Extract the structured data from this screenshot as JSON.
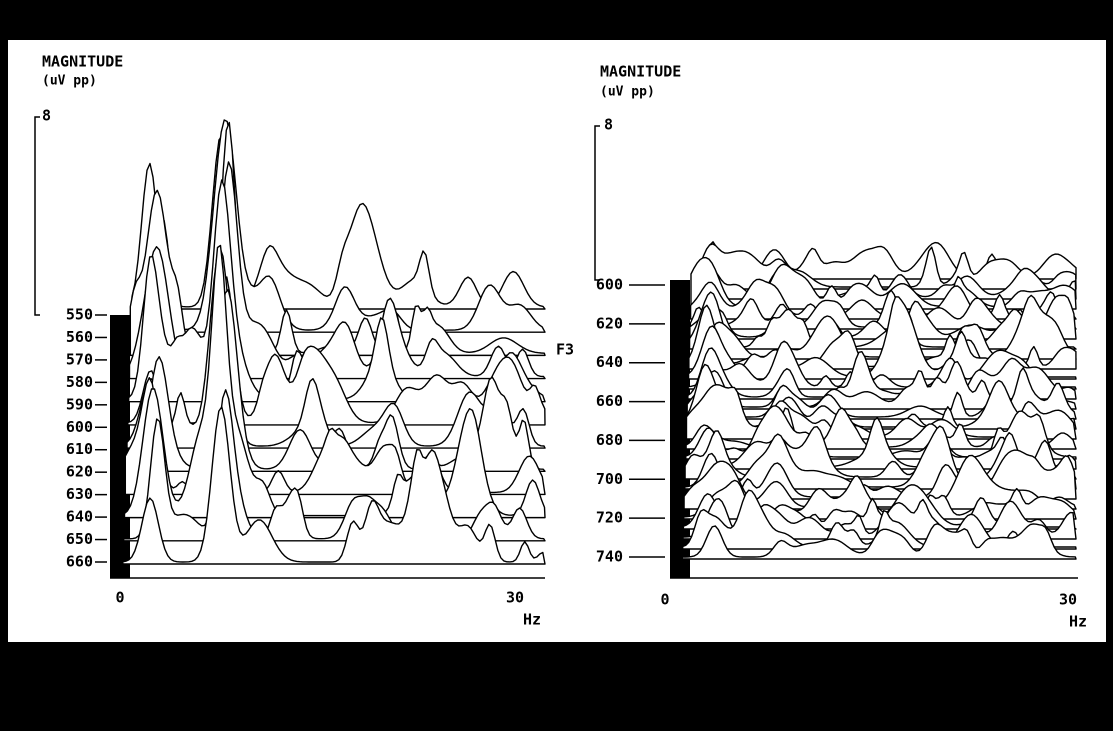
{
  "panels": [
    {
      "y_label": "MAGNITUDE",
      "y_unit": "(uV pp)",
      "scale_max": "8",
      "rows": [
        "550",
        "560",
        "570",
        "580",
        "590",
        "600",
        "610",
        "620",
        "630",
        "640",
        "650",
        "660"
      ],
      "x_start": "0",
      "x_end": "30",
      "x_unit": "Hz",
      "channel": "F3"
    },
    {
      "y_label": "MAGNITUDE",
      "y_unit": "(uV pp)",
      "scale_max": "8",
      "rows": [
        "600",
        "620",
        "640",
        "660",
        "680",
        "700",
        "720",
        "740"
      ],
      "x_start": "0",
      "x_end": "30",
      "x_unit": "Hz"
    }
  ]
}
